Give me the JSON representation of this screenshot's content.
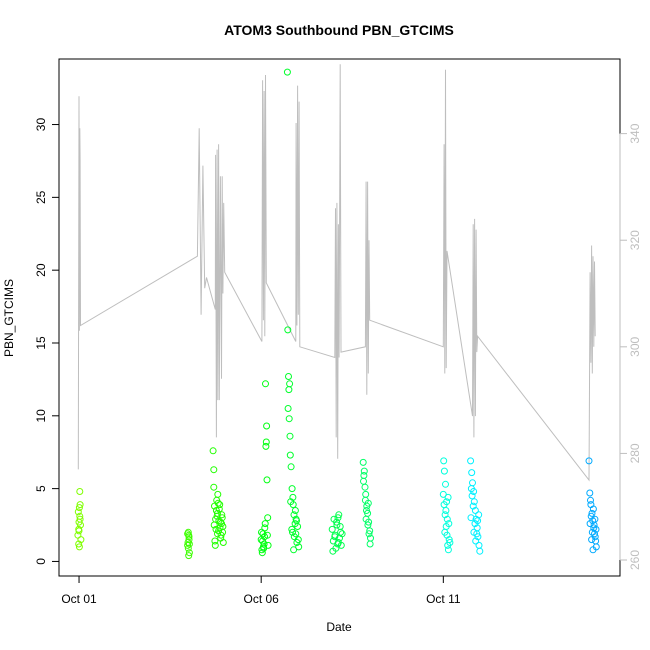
{
  "chart_data": {
    "type": "scatter",
    "title": "ATOM3 Southbound PBN_GTCIMS",
    "xlabel": "Date",
    "ylabel": "PBN_GTCIMS",
    "x_ticks": [
      "Oct 01",
      "Oct 06",
      "Oct 11"
    ],
    "x_tick_days": [
      1,
      6,
      11
    ],
    "xlim_days": [
      0.45,
      15.85
    ],
    "y_ticks": [
      0,
      5,
      10,
      15,
      20,
      25,
      30
    ],
    "ylim": [
      -1,
      34.5
    ],
    "y2_ticks": [
      260,
      280,
      300,
      320,
      340
    ],
    "ylim_right": [
      257,
      354
    ],
    "grid": false,
    "legend": "none",
    "colors": {
      "secondary_line": "#bebebe",
      "axis": "#000000",
      "right_axis": "#bebebe"
    },
    "series": [
      {
        "day": 1.0,
        "color": "#7fff00",
        "points": [
          [
            1.0,
            2.1
          ],
          [
            1.02,
            4.8
          ],
          [
            0.98,
            3.4
          ],
          [
            1.03,
            2.9
          ],
          [
            0.99,
            1.2
          ],
          [
            1.01,
            3.7
          ],
          [
            1.04,
            2.5
          ],
          [
            0.97,
            1.8
          ],
          [
            1.0,
            2.7
          ],
          [
            1.02,
            3.1
          ],
          [
            1.05,
            1.5
          ],
          [
            0.99,
            2.2
          ],
          [
            1.01,
            1.0
          ],
          [
            1.03,
            3.9
          ]
        ]
      },
      {
        "day": 4.0,
        "color": "#3dff00",
        "points": [
          [
            4.0,
            2.0
          ],
          [
            4.02,
            1.5
          ],
          [
            3.98,
            1.1
          ],
          [
            4.01,
            1.8
          ],
          [
            4.03,
            0.6
          ],
          [
            3.99,
            1.3
          ],
          [
            4.0,
            0.9
          ],
          [
            4.02,
            1.7
          ],
          [
            4.01,
            0.4
          ],
          [
            3.98,
            1.9
          ],
          [
            4.03,
            1.2
          ]
        ]
      },
      {
        "day": 4.8,
        "color": "#22ff00",
        "points": [
          [
            4.7,
            5.1
          ],
          [
            4.72,
            3.8
          ],
          [
            4.75,
            2.9
          ],
          [
            4.78,
            4.2
          ],
          [
            4.8,
            3.3
          ],
          [
            4.83,
            2.1
          ],
          [
            4.85,
            3.6
          ],
          [
            4.88,
            2.7
          ],
          [
            4.9,
            1.8
          ],
          [
            4.93,
            3.0
          ],
          [
            4.95,
            2.4
          ],
          [
            4.73,
            1.4
          ],
          [
            4.76,
            2.2
          ],
          [
            4.81,
            4.6
          ],
          [
            4.86,
            3.9
          ],
          [
            4.91,
            2.6
          ],
          [
            4.68,
            7.6
          ],
          [
            4.7,
            6.3
          ],
          [
            4.74,
            1.1
          ],
          [
            4.79,
            3.1
          ],
          [
            4.84,
            2.8
          ],
          [
            4.89,
            1.6
          ],
          [
            4.94,
            2.0
          ],
          [
            4.77,
            3.5
          ],
          [
            4.82,
            4.0
          ],
          [
            4.87,
            2.3
          ],
          [
            4.92,
            3.2
          ],
          [
            4.71,
            2.5
          ],
          [
            4.96,
            1.3
          ],
          [
            4.8,
            1.9
          ]
        ]
      },
      {
        "day": 6.1,
        "color": "#00ff11",
        "points": [
          [
            6.0,
            1.5
          ],
          [
            6.02,
            0.8
          ],
          [
            6.05,
            1.9
          ],
          [
            6.08,
            1.2
          ],
          [
            6.1,
            2.3
          ],
          [
            6.03,
            0.6
          ],
          [
            6.06,
            1.0
          ],
          [
            6.09,
            1.7
          ],
          [
            6.12,
            12.2
          ],
          [
            6.15,
            9.3
          ],
          [
            6.14,
            8.2
          ],
          [
            6.16,
            5.6
          ],
          [
            6.18,
            3.0
          ],
          [
            6.13,
            7.9
          ],
          [
            6.11,
            2.6
          ],
          [
            6.04,
            1.4
          ],
          [
            6.07,
            0.9
          ],
          [
            6.17,
            1.8
          ],
          [
            6.01,
            2.0
          ],
          [
            6.19,
            1.1
          ]
        ]
      },
      {
        "day": 6.9,
        "color": "#00ff2c",
        "points": [
          [
            6.75,
            12.7
          ],
          [
            6.78,
            12.2
          ],
          [
            6.76,
            11.8
          ],
          [
            6.74,
            10.5
          ],
          [
            6.77,
            9.8
          ],
          [
            6.79,
            8.6
          ],
          [
            6.73,
            15.9
          ],
          [
            6.8,
            7.3
          ],
          [
            6.82,
            6.5
          ],
          [
            6.85,
            5.0
          ],
          [
            6.88,
            3.9
          ],
          [
            6.9,
            3.2
          ],
          [
            6.93,
            2.6
          ],
          [
            6.95,
            1.9
          ],
          [
            6.98,
            1.3
          ],
          [
            7.0,
            2.4
          ],
          [
            7.03,
            1.0
          ],
          [
            6.84,
            2.2
          ],
          [
            6.87,
            4.4
          ],
          [
            6.91,
            1.7
          ],
          [
            6.94,
            3.5
          ],
          [
            6.97,
            2.8
          ],
          [
            6.81,
            4.1
          ],
          [
            6.86,
            2.0
          ],
          [
            6.72,
            33.6
          ],
          [
            7.02,
            1.5
          ],
          [
            6.89,
            0.8
          ],
          [
            6.96,
            2.9
          ]
        ]
      },
      {
        "day": 8.1,
        "color": "#00ff4d",
        "points": [
          [
            7.95,
            2.2
          ],
          [
            7.98,
            1.4
          ],
          [
            8.0,
            2.9
          ],
          [
            8.03,
            1.8
          ],
          [
            8.05,
            0.9
          ],
          [
            8.08,
            2.5
          ],
          [
            8.1,
            1.2
          ],
          [
            8.13,
            3.2
          ],
          [
            8.15,
            1.6
          ],
          [
            8.18,
            2.0
          ],
          [
            8.2,
            1.1
          ],
          [
            8.02,
            1.7
          ],
          [
            8.07,
            2.7
          ],
          [
            8.12,
            1.3
          ],
          [
            8.17,
            2.4
          ],
          [
            7.97,
            0.7
          ],
          [
            8.22,
            1.9
          ],
          [
            8.11,
            3.0
          ]
        ]
      },
      {
        "day": 8.9,
        "color": "#00ff66",
        "points": [
          [
            8.8,
            6.8
          ],
          [
            8.82,
            5.9
          ],
          [
            8.85,
            5.1
          ],
          [
            8.87,
            4.6
          ],
          [
            8.9,
            3.8
          ],
          [
            8.92,
            3.3
          ],
          [
            8.95,
            2.7
          ],
          [
            8.98,
            2.1
          ],
          [
            9.0,
            1.6
          ],
          [
            8.83,
            6.2
          ],
          [
            8.86,
            4.2
          ],
          [
            8.89,
            3.5
          ],
          [
            8.93,
            2.5
          ],
          [
            8.96,
            1.9
          ],
          [
            8.99,
            1.2
          ],
          [
            8.81,
            5.5
          ],
          [
            8.88,
            2.9
          ],
          [
            8.94,
            4.0
          ]
        ]
      },
      {
        "day": 11.1,
        "color": "#00ffdd",
        "points": [
          [
            11.0,
            4.6
          ],
          [
            11.02,
            3.9
          ],
          [
            11.05,
            3.2
          ],
          [
            11.08,
            2.4
          ],
          [
            11.1,
            1.8
          ],
          [
            11.12,
            1.1
          ],
          [
            11.03,
            6.2
          ],
          [
            11.06,
            5.3
          ],
          [
            11.09,
            4.1
          ],
          [
            11.11,
            2.9
          ],
          [
            11.14,
            0.8
          ],
          [
            11.16,
            1.5
          ],
          [
            11.04,
            2.0
          ],
          [
            11.07,
            3.5
          ],
          [
            11.13,
            4.4
          ],
          [
            11.01,
            6.9
          ],
          [
            11.15,
            2.6
          ],
          [
            11.18,
            1.3
          ]
        ]
      },
      {
        "day": 11.9,
        "color": "#00f0ff",
        "points": [
          [
            11.75,
            6.9
          ],
          [
            11.78,
            6.1
          ],
          [
            11.8,
            5.4
          ],
          [
            11.83,
            4.8
          ],
          [
            11.85,
            4.1
          ],
          [
            11.88,
            3.5
          ],
          [
            11.9,
            2.9
          ],
          [
            11.93,
            2.3
          ],
          [
            11.95,
            1.7
          ],
          [
            11.98,
            1.1
          ],
          [
            12.0,
            0.7
          ],
          [
            11.77,
            5.0
          ],
          [
            11.82,
            3.8
          ],
          [
            11.87,
            2.6
          ],
          [
            11.92,
            1.9
          ],
          [
            11.97,
            3.2
          ],
          [
            11.79,
            4.5
          ],
          [
            11.84,
            2.0
          ],
          [
            11.89,
            1.4
          ],
          [
            11.94,
            2.8
          ],
          [
            11.76,
            3.0
          ]
        ]
      },
      {
        "day": 15.1,
        "color": "#00aaff",
        "points": [
          [
            15.0,
            6.9
          ],
          [
            15.02,
            4.7
          ],
          [
            15.05,
            3.9
          ],
          [
            15.08,
            3.3
          ],
          [
            15.1,
            2.8
          ],
          [
            15.13,
            2.3
          ],
          [
            15.15,
            1.9
          ],
          [
            15.18,
            1.4
          ],
          [
            15.2,
            1.0
          ],
          [
            15.03,
            2.6
          ],
          [
            15.06,
            3.1
          ],
          [
            15.09,
            2.0
          ],
          [
            15.12,
            3.6
          ],
          [
            15.14,
            2.5
          ],
          [
            15.17,
            1.7
          ],
          [
            15.04,
            4.2
          ],
          [
            15.11,
            0.8
          ],
          [
            15.16,
            2.9
          ],
          [
            15.19,
            2.2
          ],
          [
            15.07,
            1.5
          ]
        ]
      }
    ],
    "secondary_line": [
      [
        0.98,
        277
      ],
      [
        1.0,
        347
      ],
      [
        1.01,
        303
      ],
      [
        1.02,
        341
      ],
      [
        1.03,
        335
      ],
      [
        1.04,
        304
      ],
      [
        4.25,
        317
      ],
      [
        4.3,
        341
      ],
      [
        4.35,
        306
      ],
      [
        4.4,
        334
      ],
      [
        4.45,
        311
      ],
      [
        4.5,
        313
      ],
      [
        4.74,
        307
      ],
      [
        4.75,
        336
      ],
      [
        4.77,
        283
      ],
      [
        4.79,
        337
      ],
      [
        4.81,
        290
      ],
      [
        4.83,
        338
      ],
      [
        4.85,
        290
      ],
      [
        4.88,
        332
      ],
      [
        4.91,
        294
      ],
      [
        4.93,
        332
      ],
      [
        4.95,
        310
      ],
      [
        4.97,
        327
      ],
      [
        5.0,
        314
      ],
      [
        6.02,
        301
      ],
      [
        6.04,
        350
      ],
      [
        6.06,
        305
      ],
      [
        6.08,
        348
      ],
      [
        6.1,
        302
      ],
      [
        6.12,
        351
      ],
      [
        6.14,
        312
      ],
      [
        6.95,
        301
      ],
      [
        6.96,
        342
      ],
      [
        6.98,
        304
      ],
      [
        7.0,
        349
      ],
      [
        7.02,
        306
      ],
      [
        7.04,
        346
      ],
      [
        7.06,
        300
      ],
      [
        8.02,
        298
      ],
      [
        8.04,
        326
      ],
      [
        8.06,
        283
      ],
      [
        8.08,
        327
      ],
      [
        8.1,
        279
      ],
      [
        8.12,
        323
      ],
      [
        8.14,
        298
      ],
      [
        8.17,
        353
      ],
      [
        8.19,
        299
      ],
      [
        8.86,
        300
      ],
      [
        8.88,
        331
      ],
      [
        8.9,
        291
      ],
      [
        8.92,
        331
      ],
      [
        8.94,
        295
      ],
      [
        8.96,
        320
      ],
      [
        8.98,
        305
      ],
      [
        11.0,
        300
      ],
      [
        11.02,
        338
      ],
      [
        11.04,
        295
      ],
      [
        11.06,
        352
      ],
      [
        11.08,
        296
      ],
      [
        11.1,
        318
      ],
      [
        11.8,
        287
      ],
      [
        11.82,
        323
      ],
      [
        11.84,
        283
      ],
      [
        11.86,
        324
      ],
      [
        11.88,
        287
      ],
      [
        11.9,
        322
      ],
      [
        11.92,
        299
      ],
      [
        11.94,
        302
      ],
      [
        15.0,
        275
      ],
      [
        15.03,
        314
      ],
      [
        15.05,
        297
      ],
      [
        15.07,
        319
      ],
      [
        15.09,
        295
      ],
      [
        15.11,
        317
      ],
      [
        15.13,
        300
      ],
      [
        15.15,
        316
      ],
      [
        15.17,
        302
      ]
    ]
  }
}
